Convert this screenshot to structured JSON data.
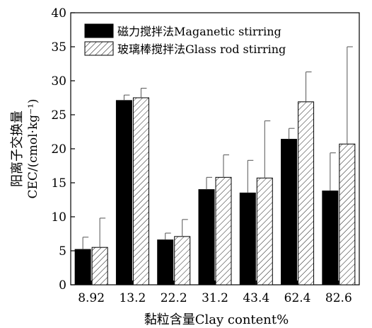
{
  "chart_data": {
    "type": "bar",
    "title": "",
    "xlabel": "黏粒含量Clay content%",
    "ylabel_line1": "阳离子交换量",
    "ylabel_line2": "CEC/(cmol·kg⁻¹)",
    "ylim": [
      0,
      40
    ],
    "yticks": [
      0,
      5,
      10,
      15,
      20,
      25,
      30,
      35,
      40
    ],
    "categories": [
      "8.92",
      "13.2",
      "22.2",
      "31.2",
      "43.4",
      "62.4",
      "82.6"
    ],
    "grid": false,
    "legend_position": "top-left",
    "series": [
      {
        "name": "磁力搅拌法Maganetic stirring",
        "fill": "#000000",
        "pattern": "solid",
        "values": [
          5.2,
          27.1,
          6.6,
          14.0,
          13.5,
          21.4,
          13.8
        ],
        "errors": [
          1.8,
          0.8,
          1.0,
          1.8,
          4.8,
          1.6,
          5.6
        ]
      },
      {
        "name": "玻璃棒搅拌法Glass rod stirring",
        "fill": "#ffffff",
        "pattern": "hatch",
        "values": [
          5.5,
          27.5,
          7.1,
          15.8,
          15.7,
          26.9,
          20.7
        ],
        "errors": [
          4.3,
          1.4,
          2.5,
          3.3,
          8.4,
          4.4,
          14.3
        ]
      }
    ]
  }
}
